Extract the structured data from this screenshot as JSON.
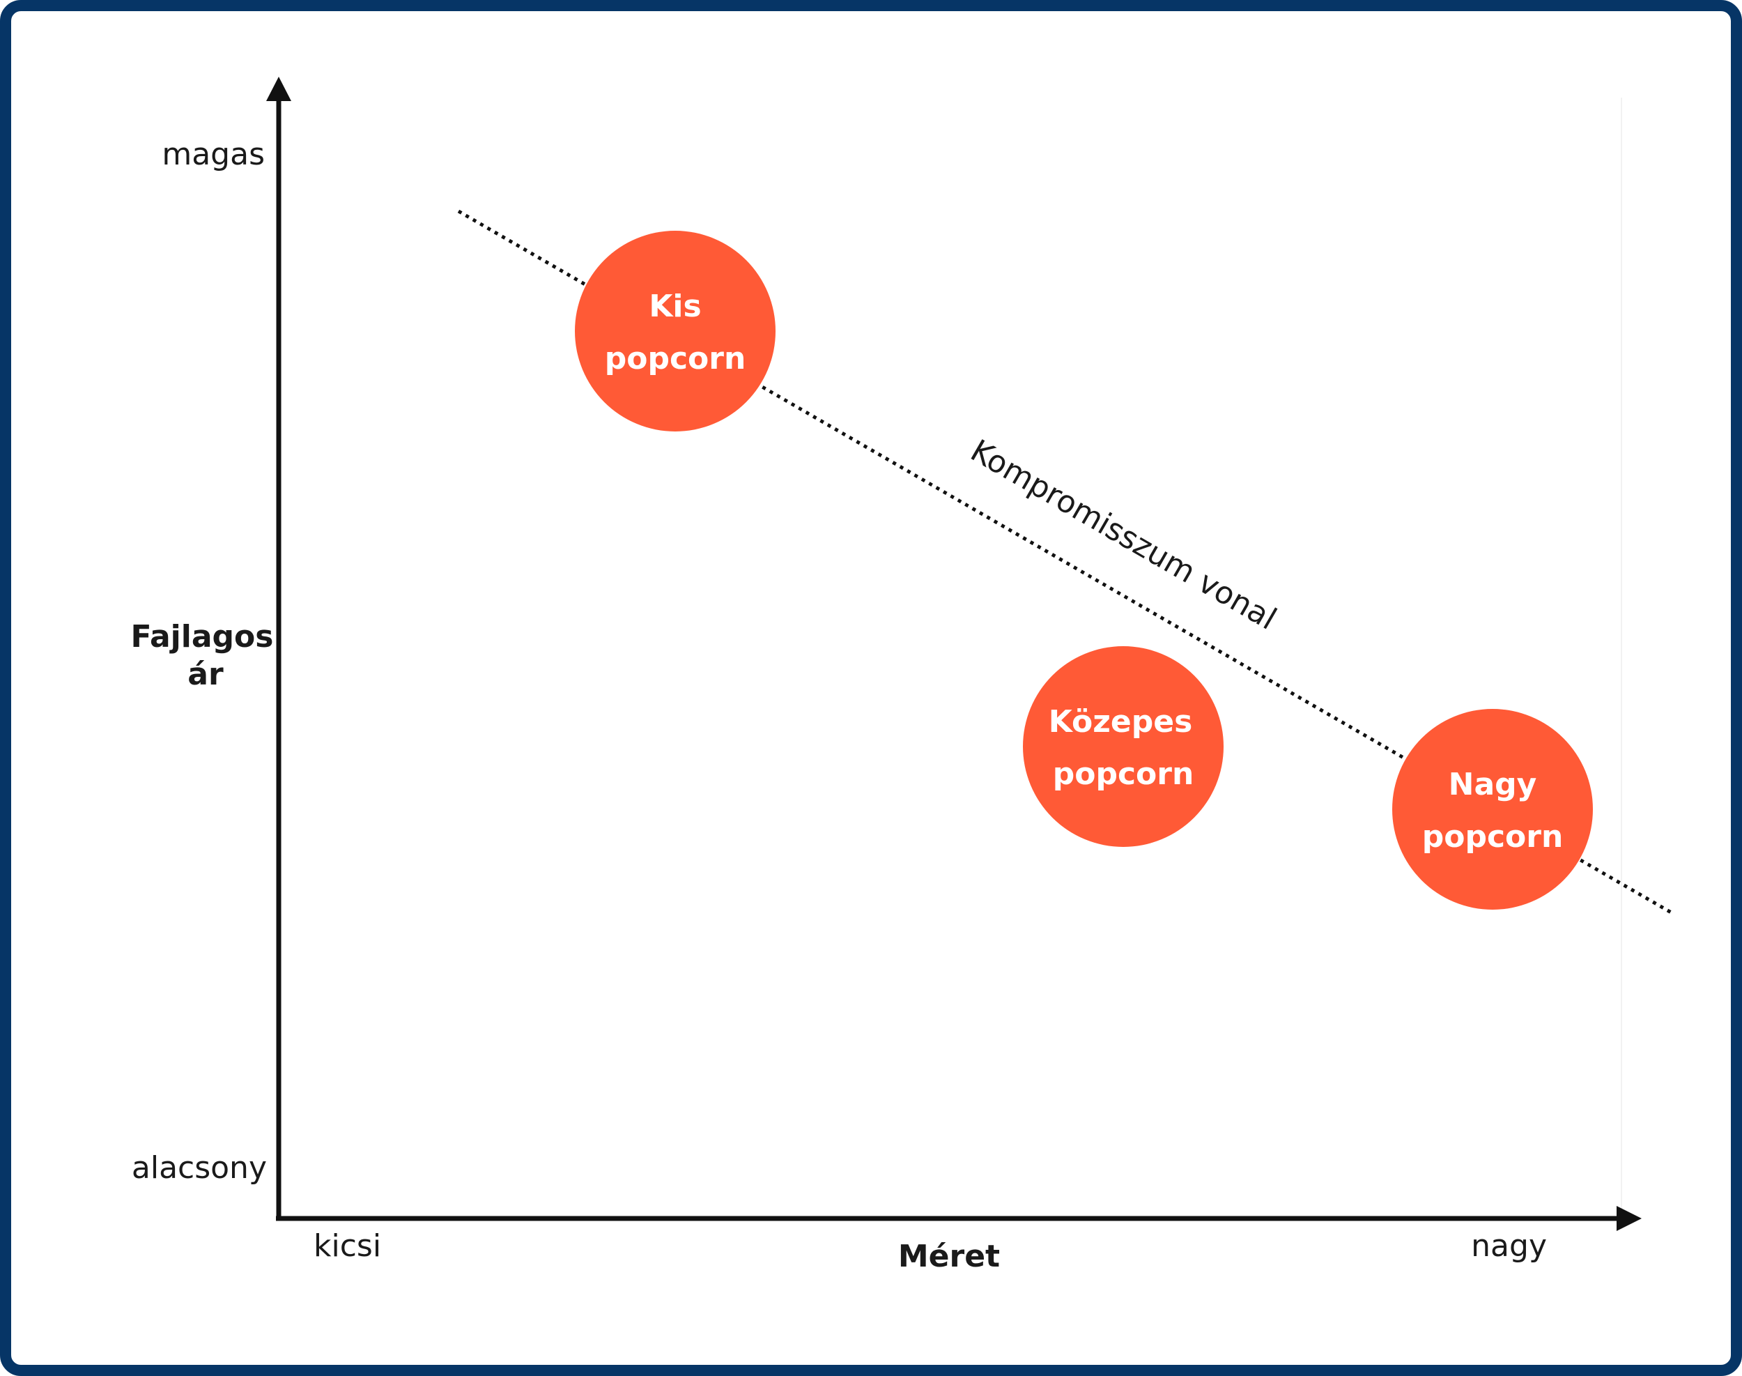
{
  "axes": {
    "y_title_line1": "Fajlagos",
    "y_title_line2": "ár",
    "y_high": "magas",
    "y_low": "alacsony",
    "x_title": "Méret",
    "x_low": "kicsi",
    "x_high": "nagy"
  },
  "tradeoff_line": {
    "label": "Kompromisszum vonal"
  },
  "bubbles": [
    {
      "line1": "Kis",
      "line2": "popcorn"
    },
    {
      "line1": "Közepes",
      "line2": "popcorn"
    },
    {
      "line1": "Nagy",
      "line2": "popcorn"
    }
  ],
  "colors": {
    "frame": "#063566",
    "bubble": "#FF5A36",
    "axis": "#111111",
    "text": "#1a1a1a"
  }
}
